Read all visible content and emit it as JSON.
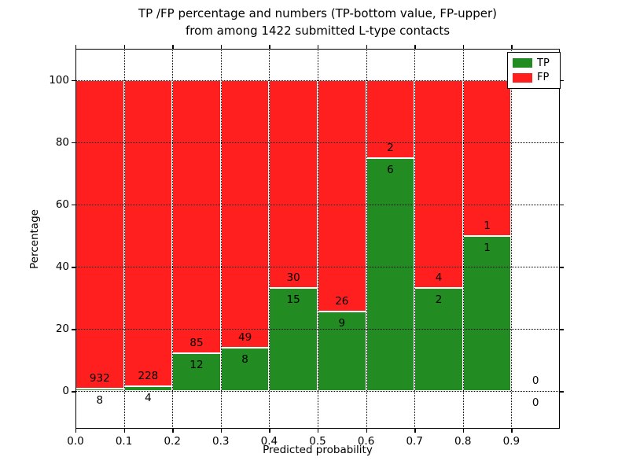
{
  "figure": {
    "title_line1": "TP /FP percentage and numbers (TP-bottom value, FP-upper)",
    "title_line2": "from among 1422 submitted L-type contacts"
  },
  "chart_data": {
    "type": "bar",
    "stacked": true,
    "title": "TP /FP percentage and numbers (TP-bottom value, FP-upper)\nfrom among 1422 submitted L-type contacts",
    "xlabel": "Predicted probability",
    "ylabel": "Percentage",
    "xlim": [
      0,
      1.0
    ],
    "ylim": [
      -12,
      110
    ],
    "bin_edges": [
      0.0,
      0.1,
      0.2,
      0.3,
      0.4,
      0.5,
      0.6,
      0.7,
      0.8,
      0.9,
      1.0
    ],
    "xtick_labels": [
      "0.0",
      "0.1",
      "0.2",
      "0.3",
      "0.4",
      "0.5",
      "0.6",
      "0.7",
      "0.8",
      "0.9"
    ],
    "ytick_values": [
      0,
      20,
      40,
      60,
      80,
      100
    ],
    "ytick_labels": [
      "0",
      "20",
      "40",
      "60",
      "80",
      "100"
    ],
    "grid": "dotted",
    "legend_position": "upper right",
    "series": [
      {
        "name": "TP",
        "color": "#228b22",
        "role": "bottom",
        "values": [
          8,
          4,
          12,
          8,
          15,
          9,
          6,
          2,
          1,
          0
        ]
      },
      {
        "name": "FP",
        "color": "#ff1f1f",
        "role": "top",
        "values": [
          932,
          228,
          85,
          49,
          30,
          26,
          2,
          4,
          1,
          0
        ]
      }
    ],
    "tp_percentages": [
      0.85,
      1.72,
      12.37,
      14.04,
      33.33,
      25.71,
      75.0,
      33.33,
      50.0,
      0.0
    ],
    "total_contacts": 1422
  }
}
